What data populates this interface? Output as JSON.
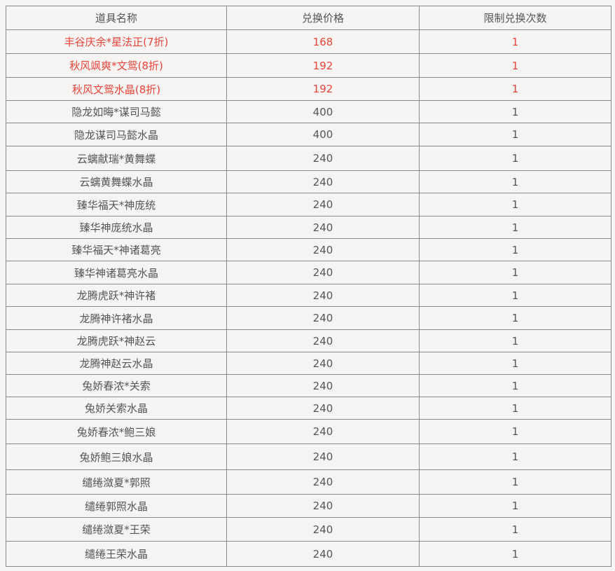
{
  "table": {
    "headers": [
      "道具名称",
      "兑换价格",
      "限制兑换次数"
    ],
    "accent_color": "#e8443a",
    "rows": [
      {
        "name": "丰谷庆余*星法正(7折)",
        "price": "168",
        "limit": "1",
        "highlight": true
      },
      {
        "name": "秋风飒爽*文鸳(8折)",
        "price": "192",
        "limit": "1",
        "highlight": true
      },
      {
        "name": "秋风文鸳水晶(8折)",
        "price": "192",
        "limit": "1",
        "highlight": true
      },
      {
        "name": "隐龙如晦*谋司马懿",
        "price": "400",
        "limit": "1"
      },
      {
        "name": "隐龙谋司马懿水晶",
        "price": "400",
        "limit": "1"
      },
      {
        "name": "云螭献瑞*黄舞蝶",
        "price": "240",
        "limit": "1"
      },
      {
        "name": "云螭黄舞蝶水晶",
        "price": "240",
        "limit": "1"
      },
      {
        "name": "臻华福天*神庞统",
        "price": "240",
        "limit": "1"
      },
      {
        "name": "臻华神庞统水晶",
        "price": "240",
        "limit": "1"
      },
      {
        "name": "臻华福天*神诸葛亮",
        "price": "240",
        "limit": "1"
      },
      {
        "name": "臻华神诸葛亮水晶",
        "price": "240",
        "limit": "1"
      },
      {
        "name": "龙腾虎跃*神许褚",
        "price": "240",
        "limit": "1"
      },
      {
        "name": "龙腾神许褚水晶",
        "price": "240",
        "limit": "1"
      },
      {
        "name": "龙腾虎跃*神赵云",
        "price": "240",
        "limit": "1"
      },
      {
        "name": "龙腾神赵云水晶",
        "price": "240",
        "limit": "1"
      },
      {
        "name": "兔娇春浓*关索",
        "price": "240",
        "limit": "1"
      },
      {
        "name": "兔娇关索水晶",
        "price": "240",
        "limit": "1"
      },
      {
        "name": "兔娇春浓*鲍三娘",
        "price": "240",
        "limit": "1"
      },
      {
        "name": "兔娇鲍三娘水晶",
        "price": "240",
        "limit": "1"
      },
      {
        "name": "缱绻潋夏*郭照",
        "price": "240",
        "limit": "1"
      },
      {
        "name": "缱绻郭照水晶",
        "price": "240",
        "limit": "1"
      },
      {
        "name": "缱绻潋夏*王荣",
        "price": "240",
        "limit": "1"
      },
      {
        "name": "缱绻王荣水晶",
        "price": "240",
        "limit": "1"
      }
    ]
  }
}
